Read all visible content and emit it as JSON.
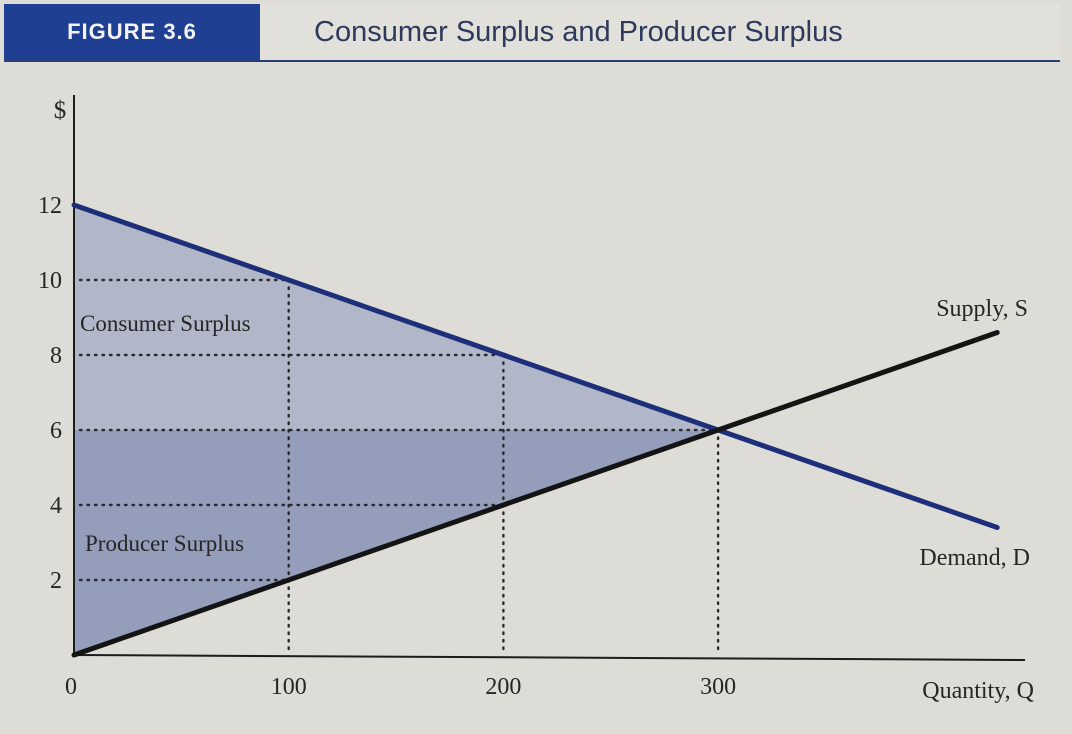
{
  "figure": {
    "label": "FIGURE 3.6",
    "title": "Consumer Surplus and Producer Surplus"
  },
  "chart_data": {
    "type": "line",
    "ylabel": "$",
    "xlabel": "Quantity, Q",
    "xlim": [
      0,
      450
    ],
    "ylim": [
      0,
      12
    ],
    "x_ticks": [
      0,
      100,
      200,
      300
    ],
    "y_ticks": [
      2,
      4,
      6,
      8,
      10,
      12
    ],
    "series": [
      {
        "name": "Demand, D",
        "x": [
          0,
          300,
          430
        ],
        "y": [
          12,
          6,
          3.4
        ]
      },
      {
        "name": "Supply, S",
        "x": [
          0,
          300,
          430
        ],
        "y": [
          0,
          6,
          8.6
        ]
      }
    ],
    "equilibrium": {
      "x": 300,
      "y": 6
    },
    "areas": [
      {
        "label": "Consumer Surplus",
        "vertices": [
          [
            0,
            12
          ],
          [
            300,
            6
          ],
          [
            0,
            6
          ]
        ]
      },
      {
        "label": "Producer Surplus",
        "vertices": [
          [
            0,
            6
          ],
          [
            300,
            6
          ],
          [
            0,
            0
          ]
        ]
      }
    ],
    "grid": false,
    "colors": {
      "demand": "#1e2f7a",
      "supply": "#141414",
      "consumer_fill": "#a9b0c6",
      "producer_fill": "#8793b6"
    }
  }
}
